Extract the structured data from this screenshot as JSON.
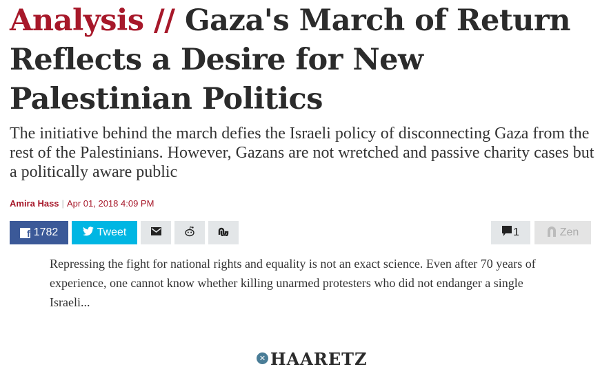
{
  "article": {
    "kicker": "Analysis //",
    "title": "Gaza's March of Return Reflects a Desire for New Palestinian Politics",
    "subtitle": "The initiative behind the march defies the Israeli policy of disconnecting Gaza from the rest of the Palestinians. However, Gazans are not wretched and passive charity cases but a politically aware public",
    "author": "Amira Hass",
    "byline_separator": "|",
    "date": "Apr 01, 2018 4:09 PM",
    "excerpt": "Repressing the fight for national rights and equality is not an exact science. Even after 70 years of experience, one cannot know whether killing unarmed protesters who did not endanger a single Israeli..."
  },
  "share": {
    "facebook_count": "1782",
    "tweet_label": "Tweet",
    "comments_count": "1",
    "zen_label": "Zen",
    "icons": [
      "facebook-icon",
      "twitter-icon",
      "mail-icon",
      "reddit-icon",
      "stumbleupon-icon",
      "comment-icon",
      "zen-icon"
    ]
  },
  "logo": {
    "text": "HAARETZ"
  },
  "colors": {
    "accent": "#a7182a",
    "facebook": "#3b5998",
    "twitter": "#00b6e3"
  }
}
